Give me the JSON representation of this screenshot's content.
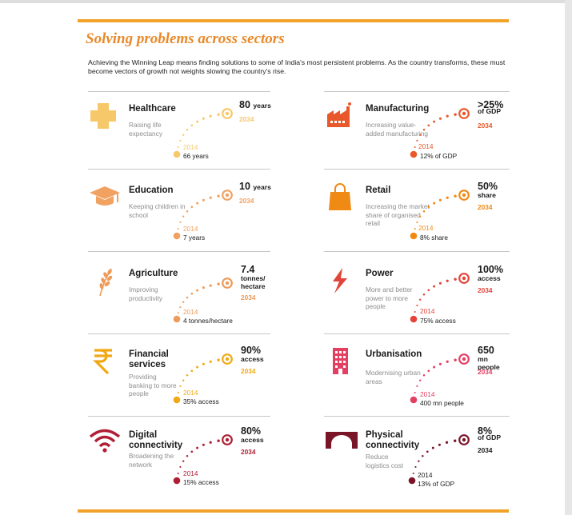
{
  "page": {
    "title": "Solving problems across sectors",
    "intro": "Achieving the Winning Leap means finding solutions to some of India's most persistent problems. As the country transforms, these must become vectors of growth not weights slowing the country's rise."
  },
  "sectors": [
    {
      "name": "Healthcare",
      "icon": "medical-cross-icon",
      "color": "#f7c86a",
      "description": "Raising life expectancy",
      "target_value": "80",
      "target_unit": "years",
      "target_year": "2034",
      "start_year": "2014",
      "start_value": "66 years"
    },
    {
      "name": "Manufacturing",
      "icon": "factory-icon",
      "color": "#e8582a",
      "description": "Increasing value-added manufacturing",
      "target_value": ">25%",
      "target_unit": "of GDP",
      "target_year": "2034",
      "start_year": "2014",
      "start_value": "12% of GDP"
    },
    {
      "name": "Education",
      "icon": "graduation-cap-icon",
      "color": "#f1a261",
      "description": "Keeping children in school",
      "target_value": "10",
      "target_unit": "years",
      "target_year": "2034",
      "start_year": "2014",
      "start_value": "7 years"
    },
    {
      "name": "Retail",
      "icon": "shopping-bag-icon",
      "color": "#ef8a14",
      "description": "Increasing the market share of organised retail",
      "target_value": "50%",
      "target_unit": "share",
      "target_year": "2034",
      "start_year": "2014",
      "start_value": "8% share"
    },
    {
      "name": "Agriculture",
      "icon": "wheat-icon",
      "color": "#ee9a58",
      "description": "Improving productivity",
      "target_value": "7.4",
      "target_unit": "tonnes/ hectare",
      "target_year": "2034",
      "start_year": "2014",
      "start_value": "4 tonnes/hectare"
    },
    {
      "name": "Power",
      "icon": "lightning-icon",
      "color": "#e2443b",
      "description": "More and better power to more people",
      "target_value": "100%",
      "target_unit": "access",
      "target_year": "2034",
      "start_year": "2014",
      "start_value": "75% access"
    },
    {
      "name": "Financial services",
      "icon": "rupee-icon",
      "color": "#f0a914",
      "description": "Providing banking to more people",
      "target_value": "90%",
      "target_unit": "access",
      "target_year": "2034",
      "start_year": "2014",
      "start_value": "35% access"
    },
    {
      "name": "Urbanisation",
      "icon": "building-icon",
      "color": "#e33f63",
      "description": "Modernising urban areas",
      "target_value": "650",
      "target_unit": "mn people",
      "target_year": "2034",
      "start_year": "2014",
      "start_value": "400 mn people"
    },
    {
      "name": "Digital connectivity",
      "icon": "wifi-icon",
      "color": "#b01e35",
      "description": "Broadening the network",
      "target_value": "80%",
      "target_unit": "access",
      "target_year": "2034",
      "start_year": "2014",
      "start_value": "15% access"
    },
    {
      "name": "Physical connectivity",
      "icon": "bridge-icon",
      "color": "#7a1528",
      "description": "Reduce logistics cost",
      "target_value": "8%",
      "target_unit": "of GDP",
      "target_year": "2034",
      "start_year": "2014",
      "start_value": "13% of GDP"
    }
  ]
}
